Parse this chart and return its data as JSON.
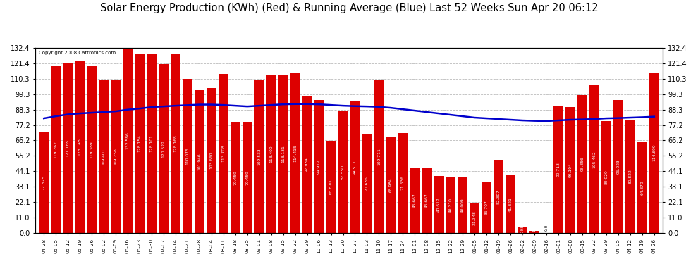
{
  "title": "Solar Energy Production (KWh) (Red) & Running Average (Blue) Last 52 Weeks Sun Apr 20 06:12",
  "copyright": "Copyright 2008 Cartronics.com",
  "bar_color": "#dd0000",
  "avg_line_color": "#0000cc",
  "background_color": "#ffffff",
  "grid_color": "#bbbbbb",
  "ylim": [
    0,
    132.4
  ],
  "yticks": [
    0.0,
    11.0,
    22.1,
    33.1,
    44.1,
    55.2,
    66.2,
    77.2,
    88.3,
    99.3,
    110.3,
    121.4,
    132.4
  ],
  "labels": [
    "04-28",
    "05-05",
    "05-12",
    "05-19",
    "05-26",
    "06-02",
    "06-09",
    "06-16",
    "06-23",
    "06-30",
    "07-07",
    "07-14",
    "07-21",
    "07-28",
    "08-04",
    "08-11",
    "08-18",
    "08-25",
    "09-01",
    "09-08",
    "09-15",
    "09-22",
    "09-29",
    "10-06",
    "10-13",
    "10-20",
    "10-27",
    "11-03",
    "11-10",
    "11-17",
    "11-24",
    "12-01",
    "12-08",
    "12-15",
    "12-22",
    "12-29",
    "01-05",
    "01-12",
    "01-19",
    "01-26",
    "02-02",
    "02-09",
    "02-16",
    "03-01",
    "03-08",
    "03-15",
    "03-22",
    "03-29",
    "04-05",
    "04-12",
    "04-19",
    "04-26"
  ],
  "values": [
    72.325,
    119.262,
    121.168,
    123.148,
    119.389,
    109.401,
    109.258,
    132.586,
    128.154,
    128.101,
    120.522,
    128.168,
    110.075,
    101.946,
    103.66,
    113.708,
    79.459,
    79.459,
    109.533,
    113.4,
    113.131,
    114.415,
    97.934,
    94.912,
    65.87,
    87.55,
    94.511,
    70.636,
    109.711,
    68.984,
    71.636,
    46.667,
    46.667,
    40.612,
    40.21,
    40.009,
    21.348,
    36.707,
    52.307,
    41.321,
    4.208,
    1.413,
    0.0,
    90.713,
    90.104,
    98.856,
    105.462,
    80.029,
    95.023,
    80.822,
    64.879,
    114.699
  ],
  "avg_values": [
    82.0,
    83.5,
    84.8,
    85.5,
    86.0,
    86.5,
    87.0,
    88.2,
    89.0,
    90.0,
    90.5,
    91.0,
    91.4,
    91.8,
    91.8,
    91.5,
    91.0,
    90.5,
    91.0,
    91.5,
    92.0,
    92.2,
    92.2,
    92.0,
    91.5,
    91.0,
    90.7,
    90.5,
    90.2,
    89.5,
    88.5,
    87.5,
    86.5,
    85.5,
    84.5,
    83.5,
    82.5,
    82.0,
    81.5,
    81.0,
    80.5,
    80.2,
    80.0,
    80.5,
    81.0,
    81.2,
    81.5,
    82.0,
    82.2,
    82.5,
    82.8,
    83.2
  ],
  "title_fontsize": 10.5,
  "tick_fontsize": 7,
  "label_fontsize": 5.2,
  "val_fontsize": 4.3
}
